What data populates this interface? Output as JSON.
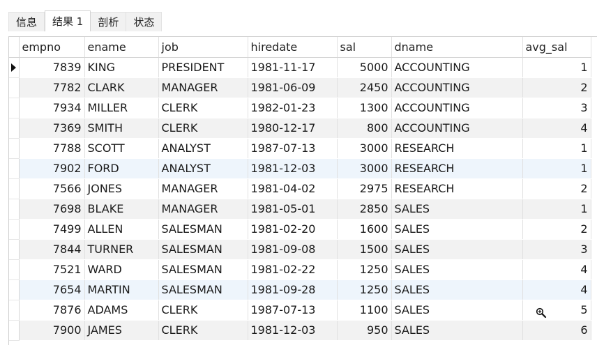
{
  "tabs": [
    {
      "label": "信息"
    },
    {
      "label": "结果 1",
      "active": true
    },
    {
      "label": "剖析"
    },
    {
      "label": "状态"
    }
  ],
  "columns": [
    "empno",
    "ename",
    "job",
    "hiredate",
    "sal",
    "dname",
    "avg_sal"
  ],
  "rows": [
    [
      "7839",
      "KING",
      "PRESIDENT",
      "1981-11-17",
      "5000",
      "ACCOUNTING",
      "1"
    ],
    [
      "7782",
      "CLARK",
      "MANAGER",
      "1981-06-09",
      "2450",
      "ACCOUNTING",
      "2"
    ],
    [
      "7934",
      "MILLER",
      "CLERK",
      "1982-01-23",
      "1300",
      "ACCOUNTING",
      "3"
    ],
    [
      "7369",
      "SMITH",
      "CLERK",
      "1980-12-17",
      "800",
      "ACCOUNTING",
      "4"
    ],
    [
      "7788",
      "SCOTT",
      "ANALYST",
      "1987-07-13",
      "3000",
      "RESEARCH",
      "1"
    ],
    [
      "7902",
      "FORD",
      "ANALYST",
      "1981-12-03",
      "3000",
      "RESEARCH",
      "1"
    ],
    [
      "7566",
      "JONES",
      "MANAGER",
      "1981-04-02",
      "2975",
      "RESEARCH",
      "2"
    ],
    [
      "7698",
      "BLAKE",
      "MANAGER",
      "1981-05-01",
      "2850",
      "SALES",
      "1"
    ],
    [
      "7499",
      "ALLEN",
      "SALESMAN",
      "1981-02-20",
      "1600",
      "SALES",
      "2"
    ],
    [
      "7844",
      "TURNER",
      "SALESMAN",
      "1981-09-08",
      "1500",
      "SALES",
      "3"
    ],
    [
      "7521",
      "WARD",
      "SALESMAN",
      "1981-02-22",
      "1250",
      "SALES",
      "4"
    ],
    [
      "7654",
      "MARTIN",
      "SALESMAN",
      "1981-09-28",
      "1250",
      "SALES",
      "4"
    ],
    [
      "7876",
      "ADAMS",
      "CLERK",
      "1987-07-13",
      "1100",
      "SALES",
      "5"
    ],
    [
      "7900",
      "JAMES",
      "CLERK",
      "1981-12-03",
      "950",
      "SALES",
      "6"
    ]
  ],
  "current_row": 0,
  "highlighted_rows": [
    5,
    11
  ],
  "cursor": "zoom-in-icon"
}
